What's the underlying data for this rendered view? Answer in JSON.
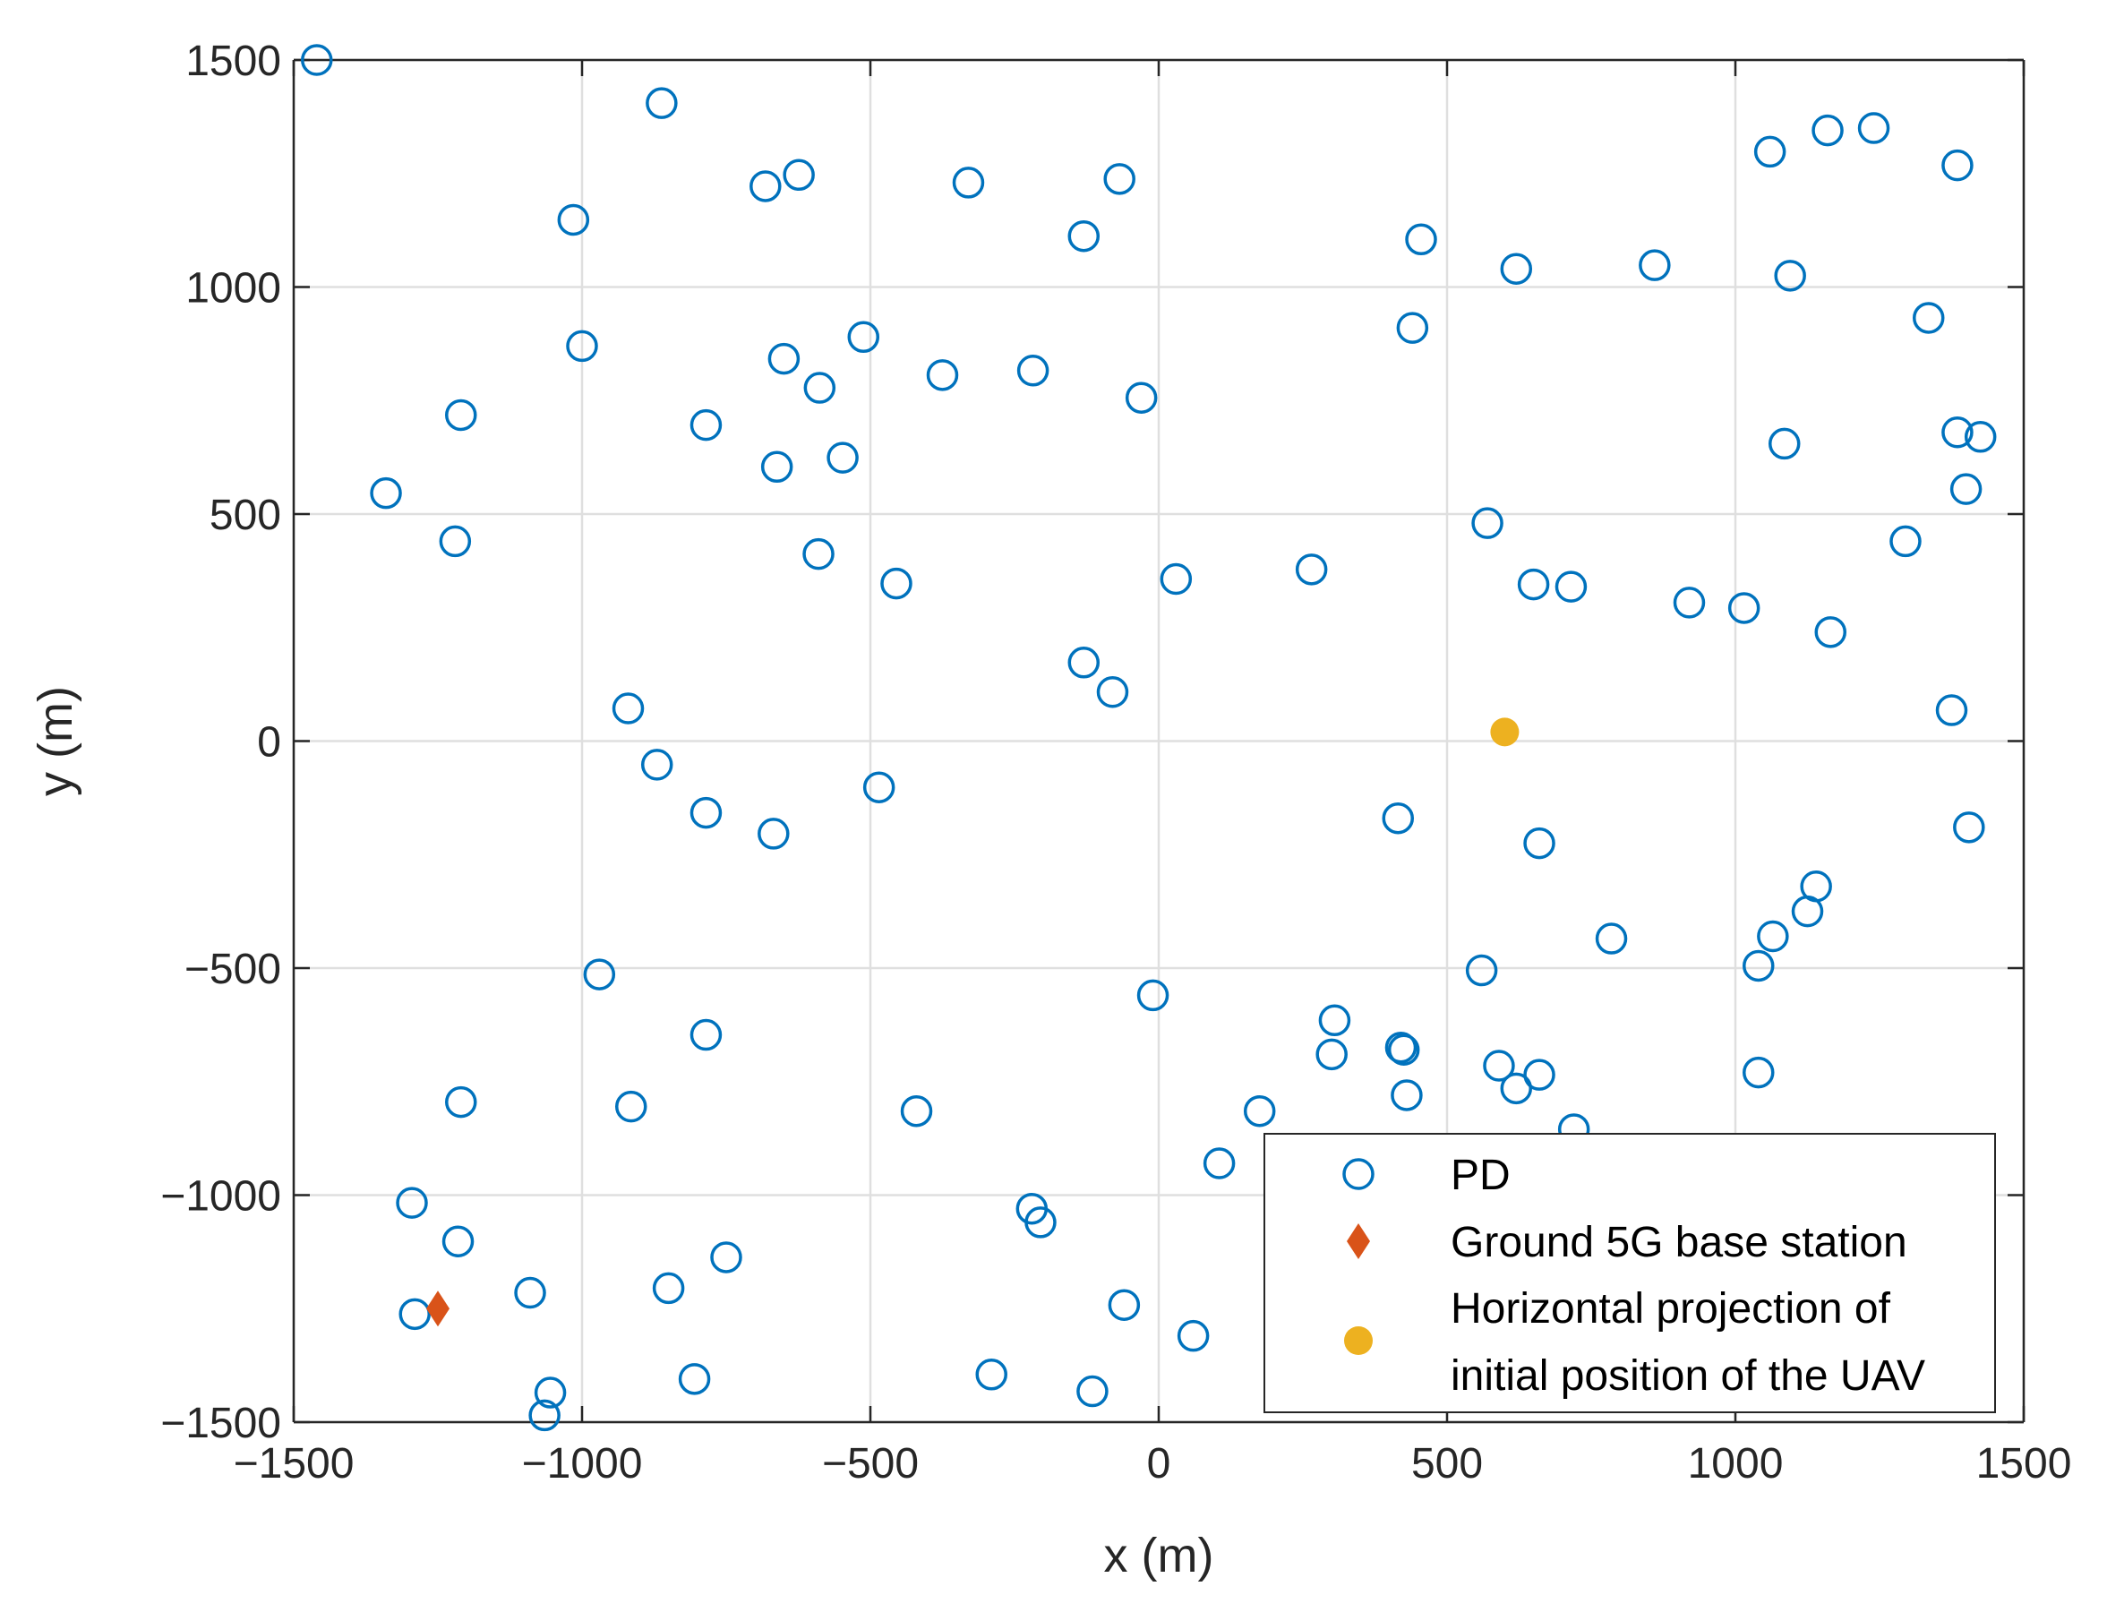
{
  "chart_data": {
    "type": "scatter",
    "title": "",
    "xlabel": "x (m)",
    "ylabel": "y (m)",
    "xlim": [
      -1500,
      1500
    ],
    "ylim": [
      -1500,
      1500
    ],
    "grid": true,
    "legend_position": "bottom-right",
    "x_ticks": [
      -1500,
      -1000,
      -500,
      0,
      500,
      1000,
      1500
    ],
    "y_ticks": [
      -1500,
      -1000,
      -500,
      0,
      500,
      1000,
      1500
    ],
    "x_tick_labels": [
      "−1500",
      "−1000",
      "−500",
      "0",
      "500",
      "1000",
      "1500"
    ],
    "y_tick_labels": [
      "−1500",
      "−1000",
      "−500",
      "0",
      "500",
      "1000",
      "1500"
    ],
    "colors": {
      "pd": "#0072BD",
      "base_station": "#D95319",
      "uav": "#EDB120",
      "grid": "#dfdfdf",
      "axis": "#262626"
    },
    "series": [
      {
        "name": "PD",
        "legend_label": "PD",
        "marker": "open-circle",
        "points": [
          [
            -1460,
            1500
          ],
          [
            -862,
            1405
          ],
          [
            -1015,
            1148
          ],
          [
            -682,
            1222
          ],
          [
            -624,
            1247
          ],
          [
            -330,
            1230
          ],
          [
            -68,
            1238
          ],
          [
            -130,
            1112
          ],
          [
            -1000,
            870
          ],
          [
            -512,
            890
          ],
          [
            -650,
            842
          ],
          [
            -588,
            778
          ],
          [
            -375,
            806
          ],
          [
            -218,
            816
          ],
          [
            -30,
            756
          ],
          [
            -1210,
            718
          ],
          [
            -785,
            696
          ],
          [
            -662,
            604
          ],
          [
            -548,
            624
          ],
          [
            -1340,
            546
          ],
          [
            -1220,
            440
          ],
          [
            -590,
            412
          ],
          [
            -455,
            347
          ],
          [
            30,
            357
          ],
          [
            265,
            378
          ],
          [
            -130,
            173
          ],
          [
            -80,
            108
          ],
          [
            -920,
            72
          ],
          [
            -870,
            -52
          ],
          [
            -785,
            -158
          ],
          [
            -668,
            -204
          ],
          [
            -485,
            -102
          ],
          [
            -970,
            -514
          ],
          [
            -785,
            -647
          ],
          [
            -420,
            -815
          ],
          [
            -10,
            -560
          ],
          [
            -1210,
            -795
          ],
          [
            -915,
            -805
          ],
          [
            -1295,
            -1017
          ],
          [
            -1215,
            -1102
          ],
          [
            -1290,
            -1262
          ],
          [
            -1090,
            -1215
          ],
          [
            -1055,
            -1435
          ],
          [
            -1065,
            -1485
          ],
          [
            -850,
            -1205
          ],
          [
            -750,
            -1137
          ],
          [
            -805,
            -1405
          ],
          [
            -290,
            -1395
          ],
          [
            -220,
            -1030
          ],
          [
            -205,
            -1060
          ],
          [
            -115,
            -1432
          ],
          [
            -60,
            -1242
          ],
          [
            60,
            -1310
          ],
          [
            105,
            -930
          ],
          [
            175,
            -815
          ],
          [
            305,
            -615
          ],
          [
            300,
            -690
          ],
          [
            420,
            -675
          ],
          [
            425,
            -680
          ],
          [
            430,
            -780
          ],
          [
            415,
            -170
          ],
          [
            560,
            -505
          ],
          [
            590,
            -715
          ],
          [
            620,
            -765
          ],
          [
            660,
            -735
          ],
          [
            660,
            -225
          ],
          [
            720,
            -855
          ],
          [
            785,
            -435
          ],
          [
            1040,
            -495
          ],
          [
            1065,
            -430
          ],
          [
            1125,
            -375
          ],
          [
            1140,
            -320
          ],
          [
            1040,
            -730
          ],
          [
            1405,
            -190
          ],
          [
            1375,
            68
          ],
          [
            1165,
            240
          ],
          [
            1015,
            293
          ],
          [
            920,
            305
          ],
          [
            715,
            340
          ],
          [
            650,
            345
          ],
          [
            570,
            480
          ],
          [
            1295,
            440
          ],
          [
            1400,
            555
          ],
          [
            1385,
            680
          ],
          [
            1425,
            670
          ],
          [
            1085,
            655
          ],
          [
            1335,
            932
          ],
          [
            440,
            910
          ],
          [
            455,
            1105
          ],
          [
            620,
            1040
          ],
          [
            860,
            1048
          ],
          [
            1095,
            1025
          ],
          [
            1060,
            1298
          ],
          [
            1160,
            1345
          ],
          [
            1240,
            1350
          ],
          [
            1385,
            1268
          ]
        ]
      },
      {
        "name": "Ground 5G base station",
        "legend_label": "Ground 5G base station",
        "marker": "filled-diamond",
        "points": [
          [
            -1250,
            -1250
          ]
        ]
      },
      {
        "name": "Horizontal projection of initial position of the UAV",
        "legend_label_lines": [
          "Horizontal projection of",
          "initial position of the UAV"
        ],
        "marker": "filled-circle",
        "points": [
          [
            600,
            20
          ]
        ]
      }
    ]
  }
}
